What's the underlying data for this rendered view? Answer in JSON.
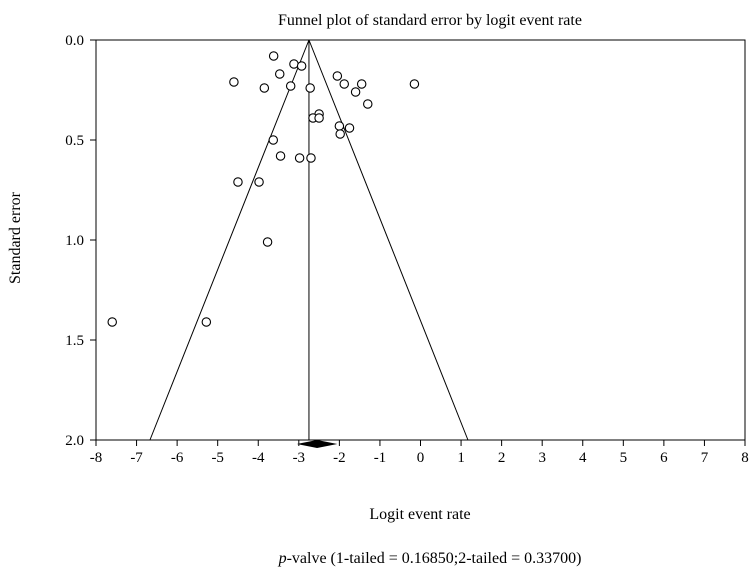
{
  "chart_data": {
    "type": "scatter",
    "title": "Funnel plot of standard error by logit event rate",
    "xlabel": "Logit event rate",
    "ylabel": "Standard error",
    "xlim": [
      -8,
      8
    ],
    "ylim": [
      0,
      2
    ],
    "y_inverted": true,
    "x_ticks": [
      "-8",
      "-7",
      "-6",
      "-5",
      "-4",
      "-3",
      "-2",
      "-1",
      "0",
      "1",
      "2",
      "3",
      "4",
      "5",
      "6",
      "7",
      "8"
    ],
    "y_ticks": [
      "0.0",
      "0.5",
      "1.0",
      "1.5",
      "2.0"
    ],
    "grid": false,
    "pooled_estimate": -2.75,
    "funnel": {
      "apex": [
        -2.75,
        0.0
      ],
      "left_base": [
        -6.67,
        2.0
      ],
      "right_base": [
        1.17,
        2.0
      ]
    },
    "summary_diamond": {
      "center": -2.55,
      "lower": -3.05,
      "upper": -2.05,
      "y": 2.02
    },
    "points": [
      {
        "x": -3.62,
        "y": 0.08
      },
      {
        "x": -3.12,
        "y": 0.12
      },
      {
        "x": -2.93,
        "y": 0.13
      },
      {
        "x": -3.47,
        "y": 0.17
      },
      {
        "x": -2.05,
        "y": 0.18
      },
      {
        "x": -4.6,
        "y": 0.21
      },
      {
        "x": -1.88,
        "y": 0.22
      },
      {
        "x": -1.45,
        "y": 0.22
      },
      {
        "x": -0.15,
        "y": 0.22
      },
      {
        "x": -3.2,
        "y": 0.23
      },
      {
        "x": -3.85,
        "y": 0.24
      },
      {
        "x": -2.72,
        "y": 0.24
      },
      {
        "x": -1.6,
        "y": 0.26
      },
      {
        "x": -1.3,
        "y": 0.32
      },
      {
        "x": -2.5,
        "y": 0.37
      },
      {
        "x": -2.65,
        "y": 0.39
      },
      {
        "x": -2.5,
        "y": 0.39
      },
      {
        "x": -2.0,
        "y": 0.43
      },
      {
        "x": -1.75,
        "y": 0.44
      },
      {
        "x": -1.98,
        "y": 0.47
      },
      {
        "x": -3.63,
        "y": 0.5
      },
      {
        "x": -3.45,
        "y": 0.58
      },
      {
        "x": -2.98,
        "y": 0.59
      },
      {
        "x": -2.7,
        "y": 0.59
      },
      {
        "x": -4.5,
        "y": 0.71
      },
      {
        "x": -3.98,
        "y": 0.71
      },
      {
        "x": -3.77,
        "y": 1.01
      },
      {
        "x": -7.6,
        "y": 1.41
      },
      {
        "x": -5.28,
        "y": 1.41
      }
    ]
  },
  "caption": {
    "italic": "p",
    "text": "-valve (1-tailed = 0.16850;2-tailed = 0.33700)"
  }
}
